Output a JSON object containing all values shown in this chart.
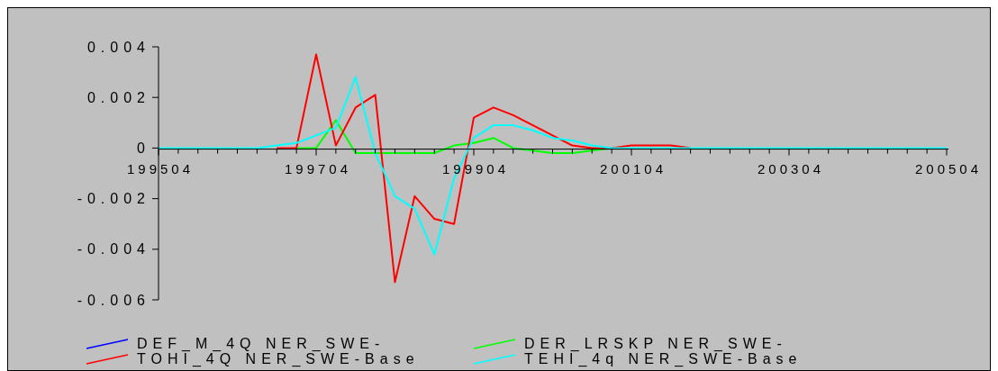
{
  "chart_data": {
    "type": "line",
    "categories": [
      "199504",
      null,
      null,
      null,
      null,
      null,
      null,
      null,
      "199704",
      null,
      null,
      null,
      null,
      null,
      null,
      null,
      "199904",
      null,
      null,
      null,
      null,
      null,
      null,
      null,
      "200104",
      null,
      null,
      null,
      null,
      null,
      null,
      null,
      "200304",
      null,
      null,
      null,
      null,
      null,
      null,
      null,
      "200504"
    ],
    "series": [
      {
        "name": "DEF_M_4Q NER_SWE-",
        "color": "#0000ff",
        "values": [
          null,
          null,
          null,
          null,
          null,
          null,
          null,
          null,
          null,
          null,
          null,
          null,
          null,
          null,
          null,
          null,
          null,
          null,
          null,
          null,
          null,
          null,
          null,
          null,
          null,
          null,
          null,
          null,
          null,
          null,
          null,
          null,
          null,
          null,
          null,
          null,
          null,
          null,
          null,
          null,
          null
        ]
      },
      {
        "name": "DER_LRSKP NER_SWE-",
        "color": "#00ff00",
        "values": [
          null,
          null,
          null,
          null,
          null,
          null,
          null,
          0,
          0,
          0.0011,
          -0.0002,
          -0.0002,
          -0.0002,
          -0.0002,
          -0.0002,
          0.0001,
          0.0002,
          0.0004,
          0,
          -0.0001,
          -0.0002,
          -0.0002,
          -0.0001,
          0,
          null,
          null,
          null,
          null,
          null,
          null,
          null,
          null,
          null,
          null,
          null,
          null,
          null,
          null,
          null,
          null,
          null
        ]
      },
      {
        "name": "TOHI_4Q NER_SWE-Base",
        "color": "#ff0000",
        "values": [
          null,
          null,
          null,
          null,
          null,
          null,
          0,
          0,
          0.0037,
          0.0001,
          0.0016,
          0.0021,
          -0.0053,
          -0.0019,
          -0.0028,
          -0.003,
          0.0012,
          0.0016,
          0.0013,
          0.0009,
          0.0005,
          0.0001,
          0,
          0,
          0.0001,
          0.0001,
          0.0001,
          0,
          null,
          null,
          null,
          null,
          null,
          null,
          null,
          null,
          null,
          null,
          null,
          null,
          null
        ]
      },
      {
        "name": "TEHI_4q NER_SWE-Base",
        "color": "#00ffff",
        "values": [
          0,
          0,
          0,
          0,
          0,
          0,
          0.0001,
          0.0002,
          0.0005,
          0.0008,
          0.0028,
          -0.0002,
          -0.0019,
          -0.0024,
          -0.0042,
          -0.0012,
          0.0004,
          0.0009,
          0.0009,
          0.0007,
          0.0004,
          0.0003,
          0.0001,
          0,
          0,
          0,
          0,
          0,
          0,
          0,
          0,
          0,
          0,
          0,
          0,
          0,
          0,
          0,
          0,
          0,
          0
        ]
      }
    ],
    "ylim": [
      -0.006,
      0.004
    ],
    "yticks": [
      {
        "value": 0.004,
        "label": "0.004"
      },
      {
        "value": 0.002,
        "label": "0.002"
      },
      0,
      {
        "value": -0.002,
        "label": "-0.002"
      },
      {
        "value": -0.004,
        "label": "-0.004"
      },
      {
        "value": -0.006,
        "label": "-0.006"
      }
    ],
    "grid": false,
    "legend": "bottom",
    "marker": "none",
    "line_style": "solid"
  }
}
